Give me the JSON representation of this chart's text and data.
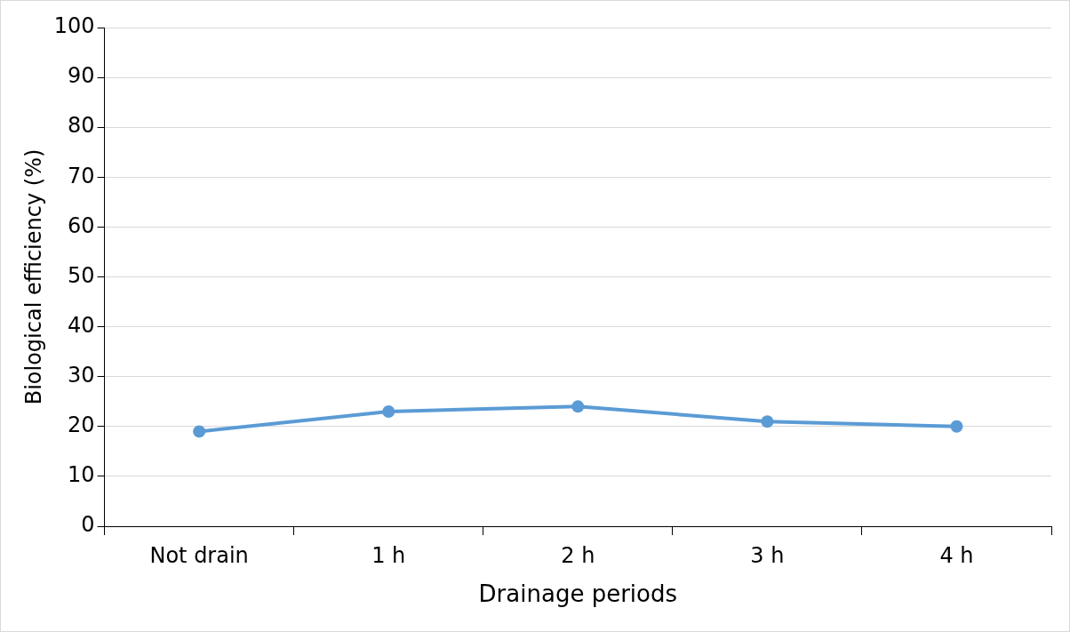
{
  "chart_data": {
    "type": "line",
    "xlabel": "Drainage periods",
    "ylabel": "Biological efficiency (%)",
    "categories": [
      "Not drain",
      "1 h",
      "2 h",
      "3 h",
      "4 h"
    ],
    "series": [
      {
        "color": "#5b9bd5",
        "values": [
          19,
          23,
          24,
          21,
          20
        ]
      }
    ],
    "ylim": [
      0,
      100
    ],
    "yticks": [
      0,
      10,
      20,
      30,
      40,
      50,
      60,
      70,
      80,
      90,
      100
    ],
    "grid": "y",
    "legend": false,
    "marker": "circle",
    "line_style": "solid"
  }
}
